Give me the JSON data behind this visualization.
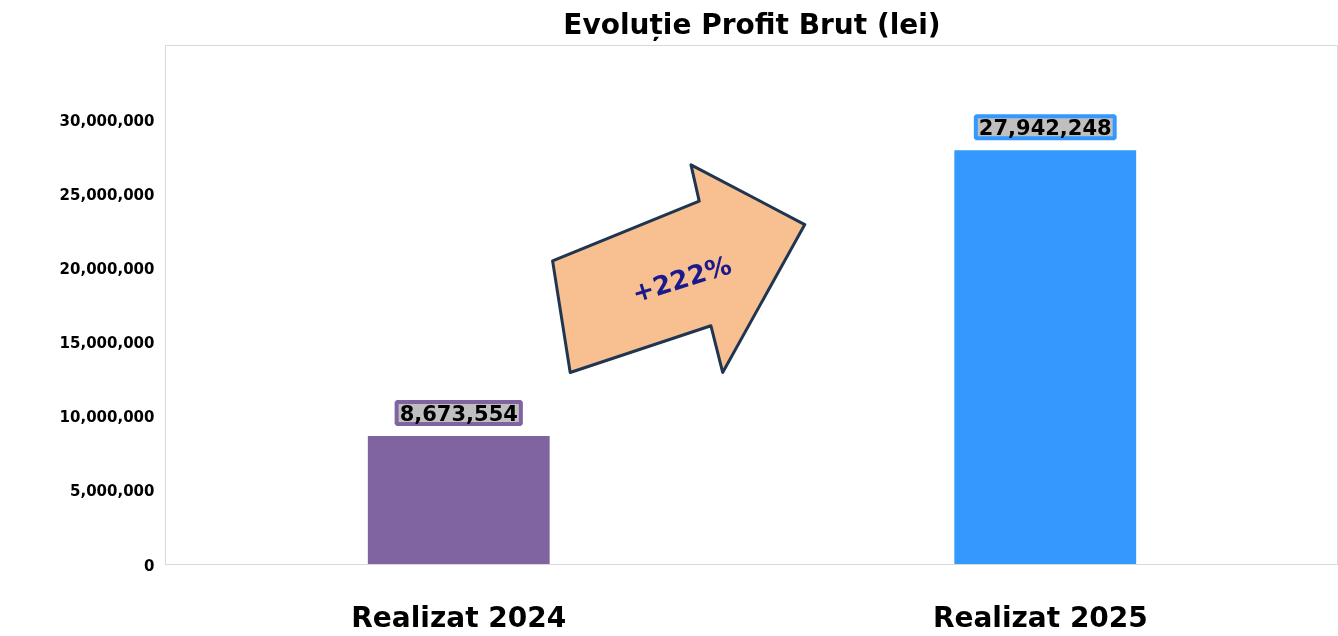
{
  "chart_data": {
    "type": "bar",
    "title": "Evoluție Profit Brut (lei)",
    "categories": [
      "Realizat 2024",
      "Realizat  2025"
    ],
    "values": [
      8673554,
      27942248
    ],
    "colors": [
      "#8064a2",
      "#3399ff"
    ],
    "ylim": [
      0,
      35000000
    ],
    "yticks": [
      {
        "value": 0,
        "label": "0"
      },
      {
        "value": 5000000,
        "label": "5,000,000"
      },
      {
        "value": 10000000,
        "label": "10,000,000"
      },
      {
        "value": 15000000,
        "label": "15,000,000"
      },
      {
        "value": 20000000,
        "label": "20,000,000"
      },
      {
        "value": 25000000,
        "label": "25,000,000"
      },
      {
        "value": 30000000,
        "label": "30,000,000"
      }
    ],
    "value_labels": [
      "8,673,554",
      "27,942,248"
    ],
    "grid": false,
    "annotations": [
      "+222%"
    ]
  }
}
